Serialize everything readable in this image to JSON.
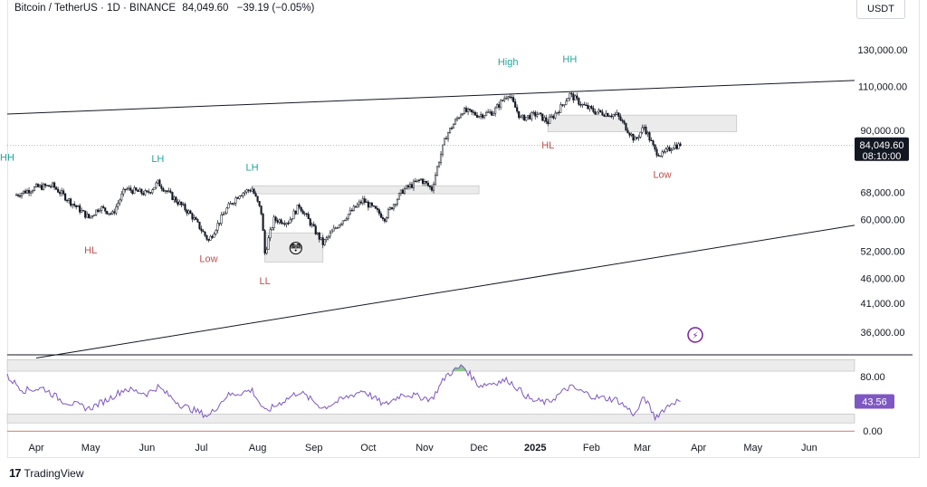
{
  "header": {
    "symbol": "Bitcoin / TetherUS · 1D · BINANCE",
    "price": "84,049.60",
    "change": "−39.19 (−0.05%)"
  },
  "currency_button": "USDT",
  "footer": {
    "logo_text": "TradingView"
  },
  "colors": {
    "up": "#131722",
    "candle_outline": "#131722",
    "green_label": "#26a69a",
    "red_label": "#c0504d",
    "rsi_line": "#7e57c2",
    "price_tag_bg": "#131722",
    "rsi_tag_bg": "#7e57c2"
  },
  "chart_data": [
    {
      "type": "candlestick",
      "title": "Bitcoin / TetherUS 1D",
      "y_scale": "log",
      "ylim": [
        33000,
        150000
      ],
      "y_ticks": [
        "130,000.00",
        "110,000.00",
        "90,000.00",
        "68,000.00",
        "60,000.00",
        "52,000.00",
        "46,000.00",
        "41,000.00",
        "36,000.00"
      ],
      "x_ticks": [
        "Apr",
        "May",
        "Jun",
        "Jul",
        "Aug",
        "Sep",
        "Oct",
        "Nov",
        "Dec",
        "2025",
        "Feb",
        "Mar",
        "Apr",
        "May",
        "Jun"
      ],
      "last_price": "84,049.60",
      "countdown": "08:10:00",
      "close_path": [
        [
          "2024-03-20",
          67000
        ],
        [
          "2024-04-01",
          69500
        ],
        [
          "2024-04-10",
          70000
        ],
        [
          "2024-04-20",
          65000
        ],
        [
          "2024-04-30",
          60500
        ],
        [
          "2024-05-06",
          63500
        ],
        [
          "2024-05-13",
          61500
        ],
        [
          "2024-05-20",
          69000
        ],
        [
          "2024-06-01",
          67500
        ],
        [
          "2024-06-07",
          71000
        ],
        [
          "2024-06-15",
          66500
        ],
        [
          "2024-06-25",
          61500
        ],
        [
          "2024-07-05",
          54500
        ],
        [
          "2024-07-15",
          63000
        ],
        [
          "2024-07-22",
          67500
        ],
        [
          "2024-07-29",
          69000
        ],
        [
          "2024-08-03",
          62000
        ],
        [
          "2024-08-05",
          51500
        ],
        [
          "2024-08-10",
          60000
        ],
        [
          "2024-08-18",
          59500
        ],
        [
          "2024-08-24",
          64000
        ],
        [
          "2024-09-01",
          57500
        ],
        [
          "2024-09-06",
          53800
        ],
        [
          "2024-09-15",
          59000
        ],
        [
          "2024-09-28",
          65500
        ],
        [
          "2024-10-10",
          60500
        ],
        [
          "2024-10-20",
          68500
        ],
        [
          "2024-10-30",
          72000
        ],
        [
          "2024-11-05",
          69000
        ],
        [
          "2024-11-13",
          88000
        ],
        [
          "2024-11-22",
          98500
        ],
        [
          "2024-12-01",
          96500
        ],
        [
          "2024-12-09",
          98000
        ],
        [
          "2024-12-17",
          106500
        ],
        [
          "2024-12-24",
          95000
        ],
        [
          "2025-01-02",
          97000
        ],
        [
          "2025-01-08",
          93500
        ],
        [
          "2025-01-15",
          100000
        ],
        [
          "2025-01-20",
          106000
        ],
        [
          "2025-01-27",
          101000
        ],
        [
          "2025-02-03",
          98000
        ],
        [
          "2025-02-15",
          96500
        ],
        [
          "2025-02-25",
          86000
        ],
        [
          "2025-03-02",
          91500
        ],
        [
          "2025-03-08",
          82000
        ],
        [
          "2025-03-12",
          80500
        ],
        [
          "2025-03-18",
          84000
        ],
        [
          "2025-03-22",
          84049.6
        ]
      ],
      "annotations": [
        {
          "text": "HH",
          "color": "green",
          "date": "2024-03-16",
          "price": 78500
        },
        {
          "text": "LH",
          "color": "green",
          "date": "2024-06-07",
          "price": 78000
        },
        {
          "text": "LH",
          "color": "green",
          "date": "2024-07-29",
          "price": 75000
        },
        {
          "text": "High",
          "color": "green",
          "date": "2024-12-17",
          "price": 121000
        },
        {
          "text": "HH",
          "color": "green",
          "date": "2025-01-20",
          "price": 122500
        },
        {
          "text": "HL",
          "color": "red",
          "date": "2024-05-01",
          "price": 51500
        },
        {
          "text": "Low",
          "color": "red",
          "date": "2024-07-05",
          "price": 49500
        },
        {
          "text": "LL",
          "color": "red",
          "date": "2024-08-05",
          "price": 44700
        },
        {
          "text": "HL",
          "color": "red",
          "date": "2025-01-08",
          "price": 83000
        },
        {
          "text": "Low",
          "color": "red",
          "date": "2025-03-12",
          "price": 72500
        }
      ],
      "zones": [
        {
          "from": "2024-07-29",
          "to": "2024-12-01",
          "low": 67500,
          "high": 70000
        },
        {
          "from": "2024-08-05",
          "to": "2024-09-06",
          "low": 49500,
          "high": 56500
        },
        {
          "from": "2025-01-08",
          "to": "2025-04-22",
          "low": 89500,
          "high": 96500
        }
      ],
      "trendlines": [
        {
          "from": [
            "2024-03-16",
            97000
          ],
          "to": [
            "2025-06-26",
            113000
          ]
        },
        {
          "from": [
            "2024-04-01",
            32000
          ],
          "to": [
            "2025-06-26",
            58500
          ]
        }
      ],
      "dotted_line_price": 84049.6
    },
    {
      "type": "line",
      "title": "RSI",
      "ylim": [
        -5,
        112
      ],
      "y_ticks": [
        "80.00",
        "0.00"
      ],
      "last_value": "43.56",
      "bands": [
        [
          88,
          105
        ],
        [
          12,
          25
        ]
      ],
      "values": [
        [
          "2024-03-16",
          80
        ],
        [
          "2024-03-25",
          60
        ],
        [
          "2024-04-05",
          63
        ],
        [
          "2024-04-15",
          45
        ],
        [
          "2024-04-30",
          33
        ],
        [
          "2024-05-10",
          46
        ],
        [
          "2024-05-20",
          62
        ],
        [
          "2024-06-01",
          55
        ],
        [
          "2024-06-07",
          65
        ],
        [
          "2024-06-20",
          38
        ],
        [
          "2024-07-05",
          22
        ],
        [
          "2024-07-15",
          52
        ],
        [
          "2024-07-29",
          60
        ],
        [
          "2024-08-05",
          28
        ],
        [
          "2024-08-24",
          58
        ],
        [
          "2024-09-06",
          34
        ],
        [
          "2024-09-28",
          60
        ],
        [
          "2024-10-10",
          38
        ],
        [
          "2024-10-20",
          55
        ],
        [
          "2024-11-05",
          47
        ],
        [
          "2024-11-13",
          82
        ],
        [
          "2024-11-22",
          96
        ],
        [
          "2024-12-01",
          67
        ],
        [
          "2024-12-17",
          75
        ],
        [
          "2024-12-30",
          45
        ],
        [
          "2025-01-08",
          42
        ],
        [
          "2025-01-20",
          65
        ],
        [
          "2025-02-03",
          50
        ],
        [
          "2025-02-15",
          46
        ],
        [
          "2025-02-25",
          24
        ],
        [
          "2025-03-02",
          50
        ],
        [
          "2025-03-08",
          20
        ],
        [
          "2025-03-12",
          30
        ],
        [
          "2025-03-18",
          43
        ],
        [
          "2025-03-22",
          43.56
        ]
      ]
    }
  ]
}
